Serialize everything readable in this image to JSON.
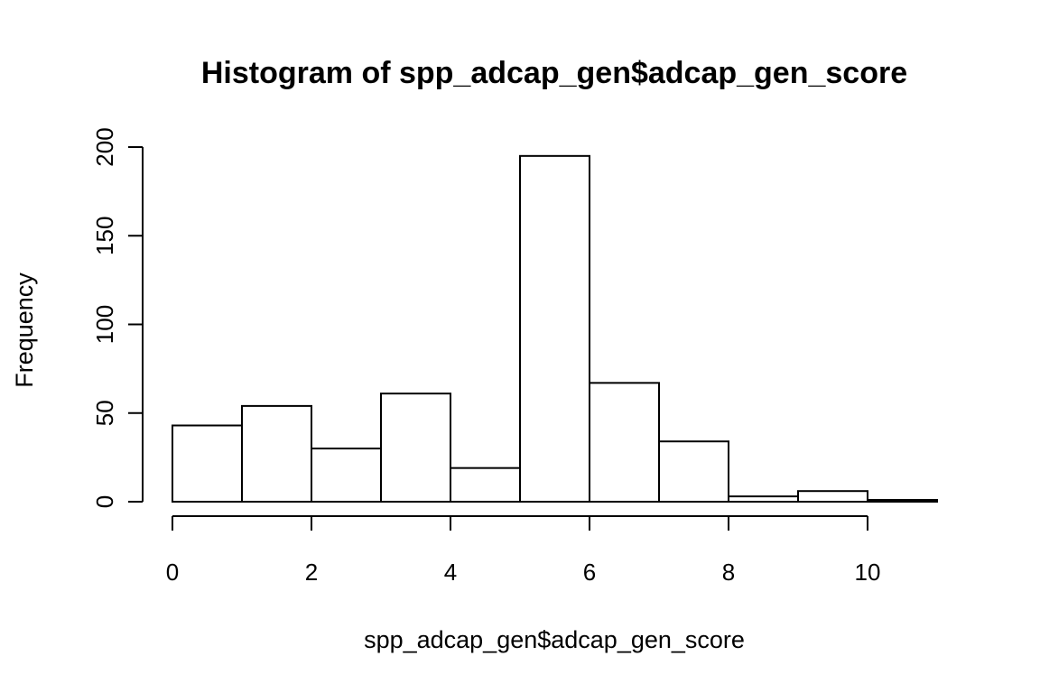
{
  "chart_data": {
    "type": "bar",
    "title": "Histogram of spp_adcap_gen$adcap_gen_score",
    "xlabel": "spp_adcap_gen$adcap_gen_score",
    "ylabel": "Frequency",
    "bins": [
      {
        "from": 0,
        "to": 1,
        "value": 43
      },
      {
        "from": 1,
        "to": 2,
        "value": 54
      },
      {
        "from": 2,
        "to": 3,
        "value": 30
      },
      {
        "from": 3,
        "to": 4,
        "value": 61
      },
      {
        "from": 4,
        "to": 5,
        "value": 19
      },
      {
        "from": 5,
        "to": 6,
        "value": 195
      },
      {
        "from": 6,
        "to": 7,
        "value": 67
      },
      {
        "from": 7,
        "to": 8,
        "value": 34
      },
      {
        "from": 8,
        "to": 9,
        "value": 3
      },
      {
        "from": 9,
        "to": 10,
        "value": 6
      },
      {
        "from": 10,
        "to": 11,
        "value": 1
      }
    ],
    "xlim": [
      0,
      11
    ],
    "ylim": [
      0,
      200
    ],
    "x_ticks": [
      0,
      2,
      4,
      6,
      8,
      10
    ],
    "y_ticks": [
      0,
      50,
      100,
      150,
      200
    ],
    "grid": false,
    "bar_fill": "#ffffff",
    "bar_stroke": "#000000"
  }
}
